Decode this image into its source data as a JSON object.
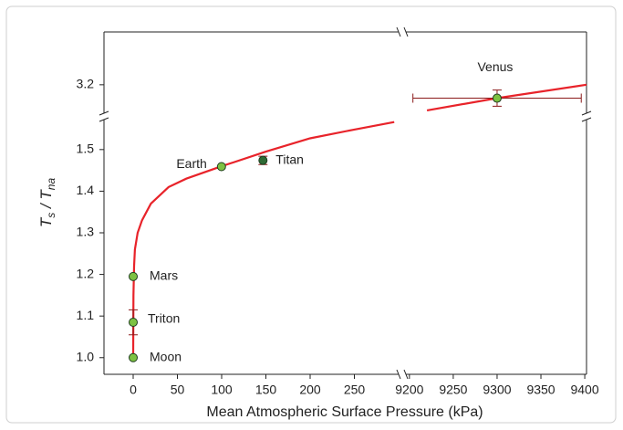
{
  "chart_data": {
    "type": "scatter",
    "x_label": "Mean Atmospheric Surface Pressure (kPa)",
    "y_label": [
      "T",
      "s",
      " / T",
      "na"
    ],
    "x_segments": [
      {
        "xlim": [
          -33,
          300
        ],
        "xticks": [
          0,
          50,
          100,
          150,
          200,
          250
        ]
      },
      {
        "xlim": [
          9196,
          9402
        ],
        "xticks": [
          9200,
          9250,
          9300,
          9350,
          9400
        ]
      }
    ],
    "y_segments": [
      {
        "ylim": [
          0.96,
          1.572
        ],
        "yticks": [
          {
            "value": 1.0,
            "label": "1.0"
          },
          1.1,
          1.2,
          1.3,
          1.4,
          1.5
        ]
      },
      {
        "ylim": [
          3.13,
          3.33
        ],
        "yticks": [
          3.2
        ]
      }
    ],
    "series": [
      {
        "name": "Moon",
        "color": "#7dc242",
        "x": [
          0
        ],
        "values": [
          1.0
        ]
      },
      {
        "name": "Triton",
        "color": "#7dc242",
        "x": [
          0
        ],
        "values": [
          1.085
        ],
        "yerr": [
          0.03
        ]
      },
      {
        "name": "Mars",
        "color": "#7dc242",
        "x": [
          0
        ],
        "values": [
          1.195
        ]
      },
      {
        "name": "Earth",
        "color": "#7dc242",
        "x": [
          99.8
        ],
        "values": [
          1.459
        ]
      },
      {
        "name": "Titan",
        "color": "#2f6b35",
        "x": [
          146.7
        ],
        "values": [
          1.474
        ],
        "yerr": [
          0.01
        ]
      },
      {
        "name": "Venus",
        "color": "#7dc242",
        "x": [
          9300
        ],
        "values": [
          3.167
        ],
        "xerr": [
          96
        ],
        "yerr": [
          0.02
        ]
      }
    ],
    "curves": [
      {
        "color": "#e8232a",
        "x": [
          0,
          0.3,
          1,
          2,
          5,
          10,
          20,
          40,
          60,
          100,
          150,
          200,
          250,
          295
        ],
        "values": [
          1.0,
          1.15,
          1.22,
          1.26,
          1.3,
          1.33,
          1.37,
          1.41,
          1.43,
          1.46,
          1.495,
          1.527,
          1.548,
          1.566
        ]
      },
      {
        "color": "#e8232a",
        "x": [
          9220,
          9300,
          9402
        ],
        "values": [
          3.137,
          3.167,
          3.2
        ]
      }
    ],
    "error_color": "#8b1a1a"
  }
}
